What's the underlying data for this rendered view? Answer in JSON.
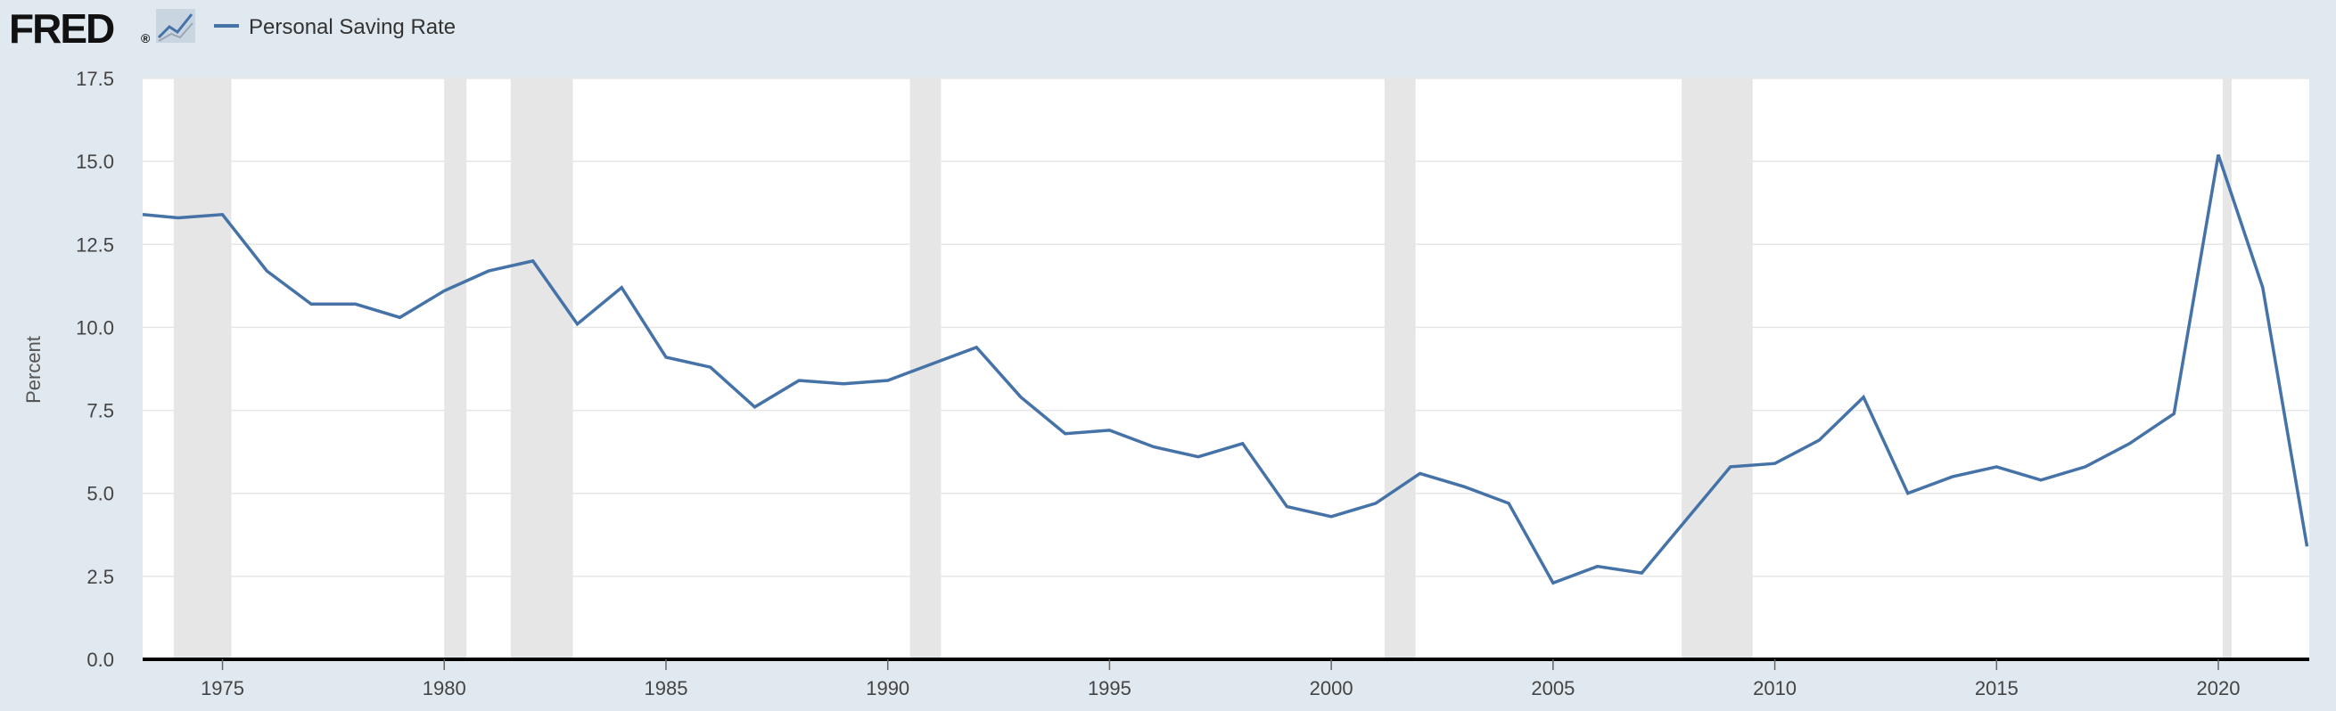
{
  "brand": {
    "logo_text": "FRED",
    "registered_mark": "®"
  },
  "colors": {
    "background": "#e1e9f0",
    "plot_background": "#ffffff",
    "series": "#4572a7",
    "recession": "#e6e6e6",
    "gridline": "#e6e6e6",
    "axis_line": "#000000"
  },
  "chart_data": {
    "type": "line",
    "title": "",
    "xlabel": "",
    "ylabel": "Percent",
    "xlim": [
      1973.2,
      2022.05
    ],
    "ylim": [
      0,
      17.5
    ],
    "y_ticks": [
      0,
      2.5,
      5,
      7.5,
      10,
      12.5,
      15,
      17.5
    ],
    "y_tick_labels": [
      "0.0",
      "2.5",
      "5.0",
      "7.5",
      "10.0",
      "12.5",
      "15.0",
      "17.5"
    ],
    "x_ticks": [
      1975,
      1980,
      1985,
      1990,
      1995,
      2000,
      2005,
      2010,
      2015,
      2020
    ],
    "x_tick_labels": [
      "1975",
      "1980",
      "1985",
      "1990",
      "1995",
      "2000",
      "2005",
      "2010",
      "2015",
      "2020"
    ],
    "grid": "horizontal",
    "legend_position": "top-left",
    "series": [
      {
        "name": "Personal Saving Rate",
        "color": "#4572a7",
        "x": [
          1973.2,
          1974,
          1975,
          1976,
          1977,
          1978,
          1979,
          1980,
          1981,
          1982,
          1983,
          1984,
          1985,
          1986,
          1987,
          1988,
          1989,
          1990,
          1991,
          1992,
          1993,
          1994,
          1995,
          1996,
          1997,
          1998,
          1999,
          2000,
          2001,
          2002,
          2003,
          2004,
          2005,
          2006,
          2007,
          2008,
          2009,
          2010,
          2011,
          2012,
          2013,
          2014,
          2015,
          2016,
          2017,
          2018,
          2019,
          2020,
          2021,
          2022
        ],
        "values": [
          13.4,
          13.3,
          13.4,
          11.7,
          10.7,
          10.7,
          10.3,
          11.1,
          11.7,
          12.0,
          10.1,
          11.2,
          9.1,
          8.8,
          7.6,
          8.4,
          8.3,
          8.4,
          8.9,
          9.4,
          7.9,
          6.8,
          6.9,
          6.4,
          6.1,
          6.5,
          4.6,
          4.3,
          4.7,
          5.6,
          5.2,
          4.7,
          2.3,
          2.8,
          2.6,
          4.2,
          5.8,
          5.9,
          6.6,
          7.9,
          5.0,
          5.5,
          5.8,
          5.4,
          5.8,
          6.5,
          7.4,
          15.2,
          11.2,
          3.4
        ]
      }
    ],
    "recessions": [
      [
        1973.9,
        1975.2
      ],
      [
        1980.0,
        1980.5
      ],
      [
        1981.5,
        1982.9
      ],
      [
        1990.5,
        1991.2
      ],
      [
        2001.2,
        2001.9
      ],
      [
        2007.9,
        2009.5
      ],
      [
        2020.1,
        2020.3
      ]
    ]
  }
}
